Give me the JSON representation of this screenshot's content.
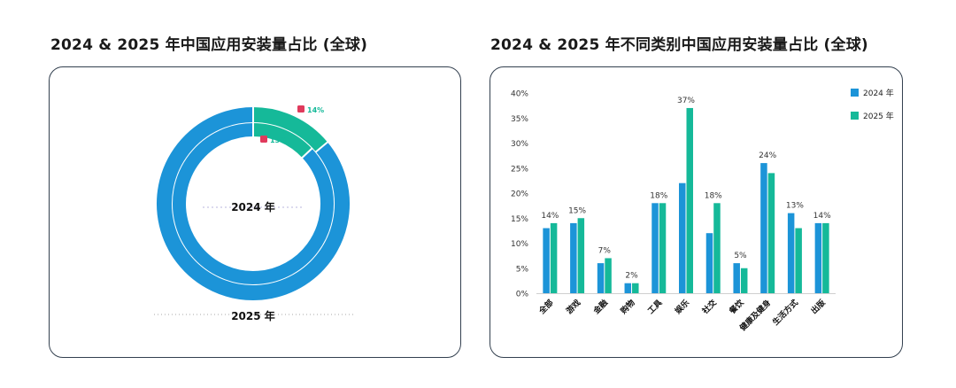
{
  "colors": {
    "year2024": "#1c94d8",
    "year2025": "#15b999",
    "marker": "#e03a5c"
  },
  "left_panel": {
    "title": "2024 & 2025 年中国应用安装量占比 (全球)"
  },
  "right_panel": {
    "title": "2024 & 2025 年不同类别中国应用安装量占比 (全球)"
  },
  "chart_data": [
    {
      "type": "pie",
      "title": "2024 & 2025 年中国应用安装量占比 (全球)",
      "series": [
        {
          "name": "2024 年",
          "values": [
            13,
            87
          ],
          "share_label": "13%"
        },
        {
          "name": "2025 年",
          "values": [
            14,
            86
          ],
          "share_label": "14%"
        }
      ]
    },
    {
      "type": "bar",
      "title": "2024 & 2025 年不同类别中国应用安装量占比 (全球)",
      "categories": [
        "全部",
        "游戏",
        "金融",
        "购物",
        "工具",
        "娱乐",
        "社交",
        "餐饮",
        "健康及健身",
        "生活方式",
        "出版"
      ],
      "series": [
        {
          "name": "2024 年",
          "values": [
            13,
            14,
            6,
            2,
            18,
            22,
            12,
            6,
            26,
            16,
            14
          ]
        },
        {
          "name": "2025 年",
          "values": [
            14,
            15,
            7,
            2,
            18,
            37,
            18,
            5,
            24,
            13,
            14
          ],
          "labels": [
            "14%",
            "15%",
            "7%",
            "2%",
            "18%",
            "37%",
            "18%",
            "5%",
            "24%",
            "13%",
            "14%"
          ]
        }
      ],
      "yticks": [
        "0%",
        "5%",
        "10%",
        "15%",
        "20%",
        "25%",
        "30%",
        "35%",
        "40%"
      ],
      "ylim": [
        0,
        40
      ],
      "legend_position": "top-right",
      "grid": false
    }
  ]
}
